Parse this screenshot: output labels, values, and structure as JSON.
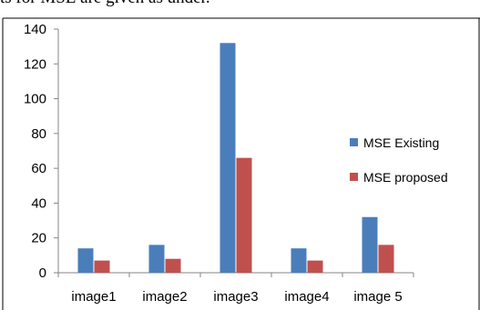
{
  "page": {
    "top_text": "ts for MSE are given as under."
  },
  "chart_data": {
    "type": "bar",
    "title": "",
    "xlabel": "",
    "ylabel": "",
    "categories": [
      "image1",
      "image2",
      "image3",
      "image4",
      "image 5"
    ],
    "ylim": [
      0,
      140
    ],
    "yticks": [
      0,
      20,
      40,
      60,
      80,
      100,
      120,
      140
    ],
    "grid": false,
    "legend_position": "right",
    "series": [
      {
        "name": "MSE Existing",
        "color": "#4a7ebb",
        "values": [
          14,
          16,
          132,
          14,
          32
        ]
      },
      {
        "name": "MSE proposed",
        "color": "#c0504d",
        "values": [
          7,
          8,
          66,
          7,
          16
        ]
      }
    ]
  }
}
